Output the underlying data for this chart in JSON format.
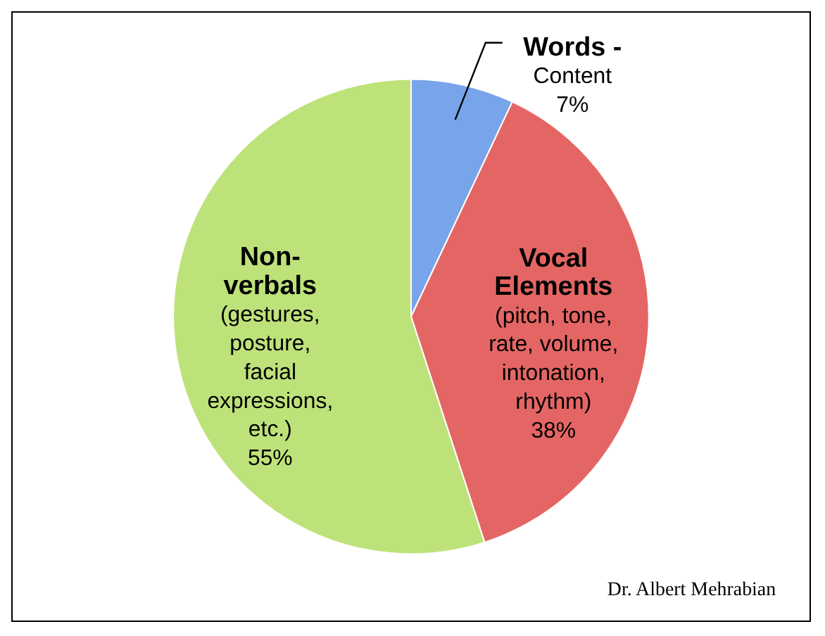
{
  "chart_data": {
    "type": "pie",
    "categories": [
      "Words - Content",
      "Vocal Elements (pitch, tone, rate, volume, intonation, rhythm)",
      "Non-verbals (gestures, posture, facial expressions, etc.)"
    ],
    "values": [
      7,
      38,
      55
    ],
    "colors": [
      "#78a4ea",
      "#e46664",
      "#bde27a"
    ],
    "value_labels": [
      "7%",
      "38%",
      "55%"
    ],
    "legend": false,
    "annotations": [
      "Dr. Albert Mehrabian"
    ]
  }
}
